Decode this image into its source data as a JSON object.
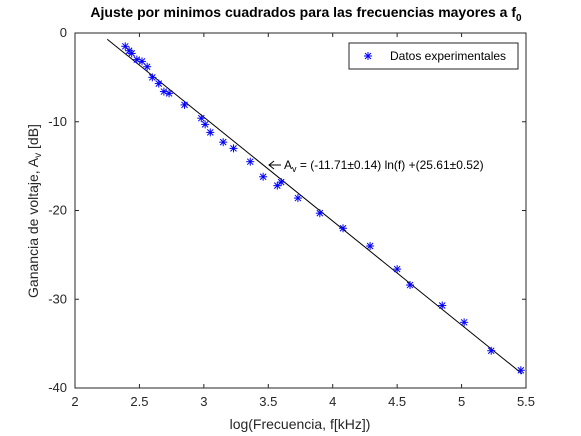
{
  "chart_data": {
    "type": "scatter",
    "title": {
      "main": "Ajuste por minimos cuadrados para las frecuencias mayores a f",
      "sub": "0"
    },
    "xlabel": "log(Frecuencia, f[kHz])",
    "ylabel": {
      "main": "Ganancia de voltaje, A",
      "sub": "v",
      "unit": " [dB]"
    },
    "xlim": [
      2,
      5.5
    ],
    "ylim": [
      -40,
      0
    ],
    "xticks": [
      "2",
      "2.5",
      "3",
      "3.5",
      "4",
      "4.5",
      "5",
      "5.5"
    ],
    "yticks": [
      "0",
      "-10",
      "-20",
      "-30",
      "-40"
    ],
    "grid": false,
    "legend": {
      "position": "top-right",
      "entries": [
        "Datos experimentales"
      ]
    },
    "annotation": {
      "prefix": "A",
      "sub": "v",
      "text": " = (-11.71±0.14) ln(f) +(25.61±0.52)",
      "x": 3.53,
      "y": -15.2
    },
    "series": [
      {
        "name": "Datos experimentales",
        "marker": "asterisk",
        "color": "#0000ff",
        "x": [
          2.39,
          2.42,
          2.44,
          2.48,
          2.52,
          2.56,
          2.6,
          2.65,
          2.69,
          2.73,
          2.85,
          2.98,
          3.01,
          3.05,
          3.15,
          3.23,
          3.36,
          3.46,
          3.57,
          3.6,
          3.73,
          3.9,
          4.08,
          4.29,
          4.5,
          4.6,
          4.85,
          5.02,
          5.23,
          5.46
        ],
        "y": [
          -1.5,
          -2.0,
          -2.3,
          -3.0,
          -3.2,
          -3.8,
          -5.0,
          -5.7,
          -6.6,
          -6.8,
          -8.1,
          -9.6,
          -10.3,
          -11.2,
          -12.3,
          -13.0,
          -14.5,
          -16.2,
          -17.2,
          -16.8,
          -18.6,
          -20.3,
          -22.0,
          -24.0,
          -26.6,
          -28.4,
          -30.7,
          -32.6,
          -35.8,
          -38.0
        ]
      },
      {
        "name": "",
        "type": "line",
        "color": "#000000",
        "x": [
          2.25,
          5.47
        ],
        "y": [
          -0.7,
          -38.4
        ]
      }
    ]
  }
}
